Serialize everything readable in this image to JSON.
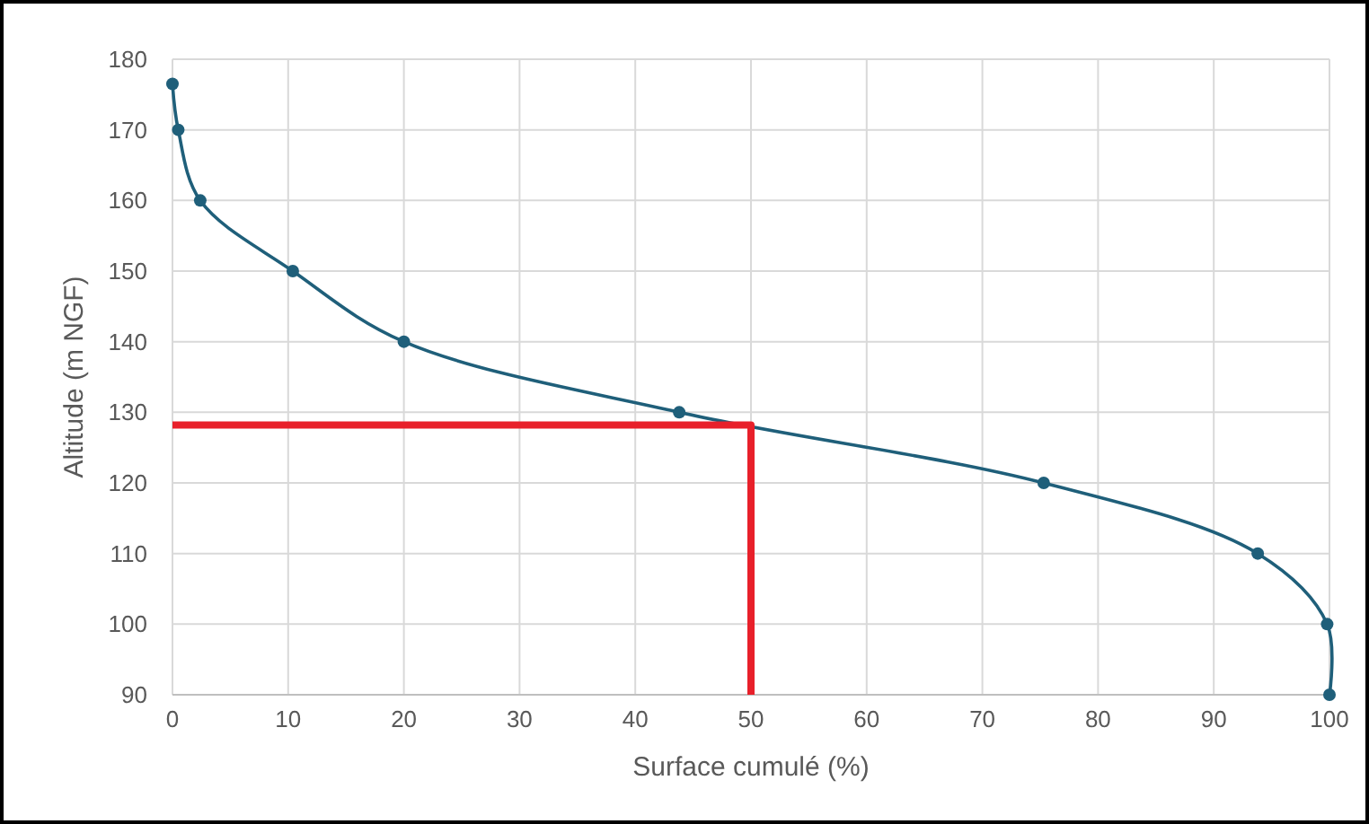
{
  "chart_data": {
    "type": "line",
    "xlabel": "Surface cumulé (%)",
    "ylabel": "Altitude (m NGF)",
    "xlim": [
      0,
      100
    ],
    "xticks": [
      0,
      10,
      20,
      30,
      40,
      50,
      60,
      70,
      80,
      90,
      100
    ],
    "ylim": [
      90,
      180
    ],
    "yticks": [
      90,
      100,
      110,
      120,
      130,
      140,
      150,
      160,
      170,
      180
    ],
    "grid": true,
    "marker": "circle",
    "line_style": "solid",
    "series": [
      {
        "color": "#1f5f7a",
        "x": [
          0,
          0.5,
          2.4,
          10.4,
          20,
          43.8,
          75.3,
          93.8,
          99.8,
          100
        ],
        "values": [
          176.5,
          170,
          160,
          150,
          140,
          130,
          120,
          110,
          100,
          90
        ]
      },
      {
        "color": "#e8202a",
        "marker": "none",
        "x": [
          0,
          50,
          50
        ],
        "values": [
          128.2,
          128.2,
          90
        ]
      }
    ]
  }
}
